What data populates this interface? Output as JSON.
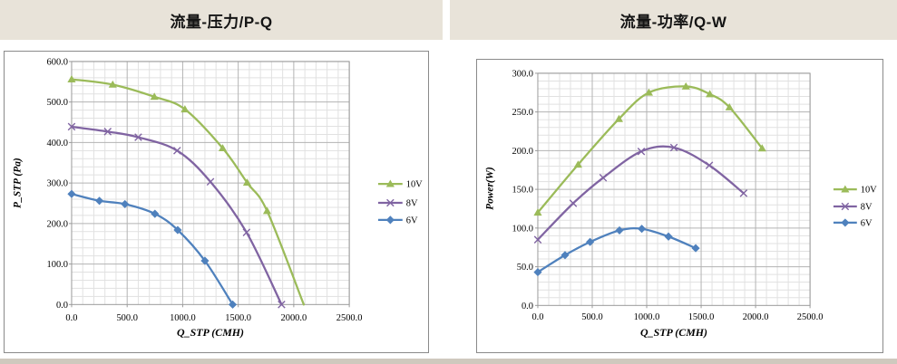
{
  "page": {
    "background": "#ffffff",
    "panel_color": "#e8e3d9",
    "bottom_strip_color": "#cfc9be",
    "box_border_color": "#8a8a8a"
  },
  "colors": {
    "grid_major": "#b3b3b3",
    "grid_minor": "#e1e1e1",
    "plot_border": "#9a9a9a",
    "text": "#000000"
  },
  "chart_data": [
    {
      "type": "line",
      "title": "流量-压力/P-Q",
      "xlabel": "Q_STP (CMH)",
      "ylabel": "P_STP (Pa)",
      "xlim": [
        0,
        2500
      ],
      "ylim": [
        0,
        600
      ],
      "x_ticks": [
        "0.0",
        "500.0",
        "1000.0",
        "1500.0",
        "2000.0",
        "2500.0"
      ],
      "y_ticks": [
        "0.0",
        "100.0",
        "200.0",
        "300.0",
        "400.0",
        "500.0",
        "600.0"
      ],
      "x_minor": 100,
      "y_minor": 20,
      "grid": true,
      "legend_position": "right",
      "series": [
        {
          "name": "10V",
          "color": "#9BBB59",
          "marker": "triangle",
          "end_marker": false,
          "points": [
            [
              0,
              556
            ],
            [
              370,
              543
            ],
            [
              745,
              513
            ],
            [
              1020,
              482
            ],
            [
              1360,
              386
            ],
            [
              1580,
              301
            ],
            [
              1760,
              231
            ],
            [
              2090,
              0
            ]
          ]
        },
        {
          "name": "8V",
          "color": "#8064A2",
          "marker": "x",
          "end_marker": true,
          "points": [
            [
              0,
              439
            ],
            [
              325,
              427
            ],
            [
              600,
              413
            ],
            [
              950,
              380
            ],
            [
              1250,
              303
            ],
            [
              1575,
              178
            ],
            [
              1890,
              0
            ]
          ]
        },
        {
          "name": "6V",
          "color": "#4F81BD",
          "marker": "diamond",
          "end_marker": true,
          "points": [
            [
              0,
              273
            ],
            [
              250,
              256
            ],
            [
              480,
              248
            ],
            [
              750,
              224
            ],
            [
              955,
              184
            ],
            [
              1200,
              108
            ],
            [
              1450,
              0
            ]
          ]
        }
      ]
    },
    {
      "type": "line",
      "title": "流量-功率/Q-W",
      "xlabel": "Q_STP (CMH)",
      "ylabel": "Power(W)",
      "xlim": [
        0,
        2500
      ],
      "ylim": [
        0,
        300
      ],
      "x_ticks": [
        "0.0",
        "500.0",
        "1000.0",
        "1500.0",
        "2000.0",
        "2500.0"
      ],
      "y_ticks": [
        "0.0",
        "50.0",
        "100.0",
        "150.0",
        "200.0",
        "250.0",
        "300.0"
      ],
      "x_minor": 100,
      "y_minor": 10,
      "grid": true,
      "legend_position": "right",
      "series": [
        {
          "name": "10V",
          "color": "#9BBB59",
          "marker": "triangle",
          "end_marker": true,
          "points": [
            [
              0,
              120
            ],
            [
              370,
              182
            ],
            [
              745,
              241
            ],
            [
              1020,
              275
            ],
            [
              1360,
              283
            ],
            [
              1580,
              273
            ],
            [
              1760,
              256
            ],
            [
              2060,
              203
            ]
          ]
        },
        {
          "name": "8V",
          "color": "#8064A2",
          "marker": "x",
          "end_marker": true,
          "points": [
            [
              0,
              85
            ],
            [
              325,
              132
            ],
            [
              600,
              165
            ],
            [
              950,
              199
            ],
            [
              1250,
              204
            ],
            [
              1575,
              181
            ],
            [
              1890,
              145
            ]
          ]
        },
        {
          "name": "6V",
          "color": "#4F81BD",
          "marker": "diamond",
          "end_marker": true,
          "points": [
            [
              0,
              43
            ],
            [
              250,
              65
            ],
            [
              480,
              82
            ],
            [
              750,
              97
            ],
            [
              955,
              99
            ],
            [
              1200,
              89
            ],
            [
              1450,
              74
            ]
          ]
        }
      ]
    }
  ]
}
